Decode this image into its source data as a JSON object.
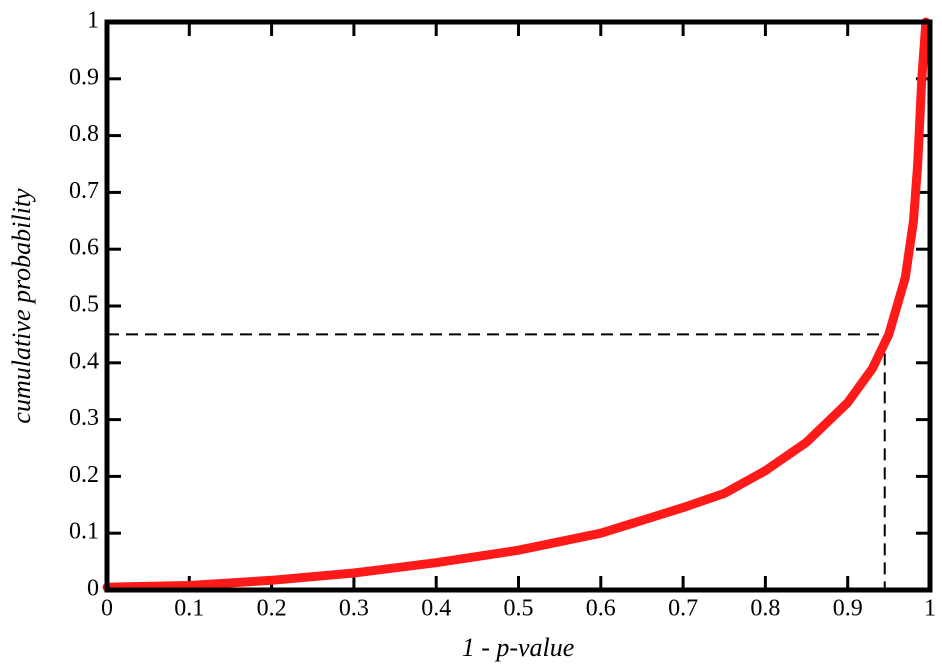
{
  "chart_data": {
    "type": "line",
    "x_label": "1 - p-value",
    "y_label": "cumulative   probability",
    "xlim": [
      0,
      1
    ],
    "ylim": [
      0,
      1
    ],
    "xticks": [
      0,
      0.1,
      0.2,
      0.3,
      0.4,
      0.5,
      0.6,
      0.7,
      0.8,
      0.9,
      1
    ],
    "yticks": [
      0,
      0.1,
      0.2,
      0.3,
      0.4,
      0.5,
      0.6,
      0.7,
      0.8,
      0.9,
      1
    ],
    "series": [
      {
        "color": "#ff1a1a",
        "x": [
          0,
          0.1,
          0.2,
          0.3,
          0.4,
          0.5,
          0.6,
          0.7,
          0.75,
          0.8,
          0.85,
          0.9,
          0.93,
          0.95,
          0.97,
          0.98,
          0.985,
          0.99,
          0.995
        ],
        "values": [
          0.005,
          0.008,
          0.017,
          0.03,
          0.048,
          0.07,
          0.1,
          0.145,
          0.17,
          0.21,
          0.26,
          0.33,
          0.39,
          0.45,
          0.55,
          0.65,
          0.75,
          0.9,
          1.0
        ]
      }
    ],
    "reference": {
      "x": 0.945,
      "y": 0.45
    }
  }
}
